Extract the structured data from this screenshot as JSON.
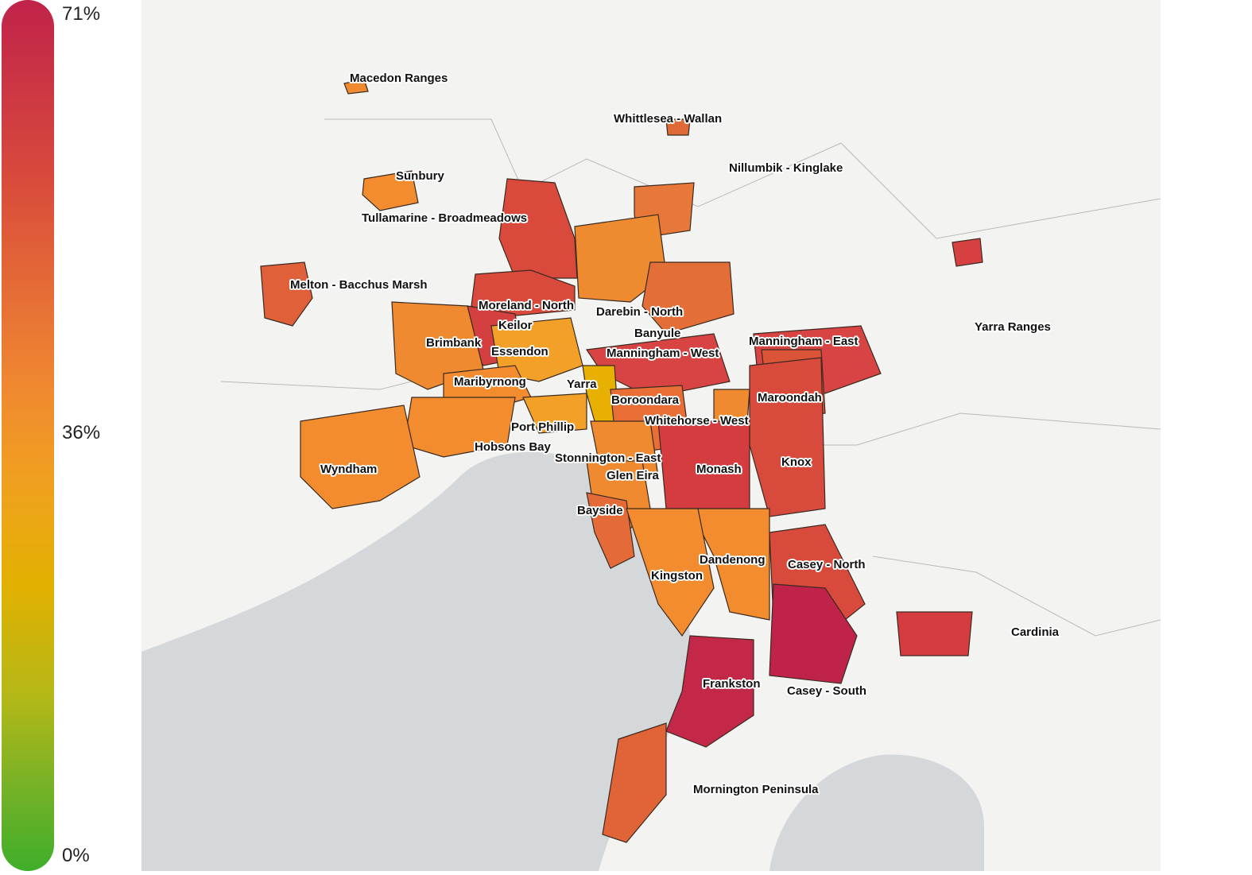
{
  "legend": {
    "max_label": "71%",
    "mid_label": "36%",
    "min_label": "0%",
    "colors": {
      "high": "#c0234a",
      "mid": "#f0a020",
      "low": "#3fae2a"
    }
  },
  "map": {
    "water_color": "#d5d8db",
    "land_color": "#f3f4f2",
    "regions": [
      {
        "name": "Macedon Ranges",
        "color": "#f08a30"
      },
      {
        "name": "Whittlesea - Wallan",
        "color": "#e06a35"
      },
      {
        "name": "Nillumbik - Kinglake",
        "color": "#e8783a"
      },
      {
        "name": "Sunbury",
        "color": "#f28c2e"
      },
      {
        "name": "Tullamarine - Broadmeadows",
        "color": "#d94a3c"
      },
      {
        "name": "Melton - Bacchus Marsh",
        "color": "#e0603a"
      },
      {
        "name": "Moreland - North",
        "color": "#d94a3c"
      },
      {
        "name": "Darebin - North",
        "color": "#ee8a30"
      },
      {
        "name": "Keilor",
        "color": "#d44040"
      },
      {
        "name": "Banyule",
        "color": "#e46e38"
      },
      {
        "name": "Brimbank",
        "color": "#f08a30"
      },
      {
        "name": "Essendon",
        "color": "#f2a028"
      },
      {
        "name": "Manningham - West",
        "color": "#d84444"
      },
      {
        "name": "Manningham - East",
        "color": "#d84444"
      },
      {
        "name": "Yarra Ranges",
        "color": "#d64040"
      },
      {
        "name": "Maribyrnong",
        "color": "#f28c2e"
      },
      {
        "name": "Yarra",
        "color": "#e8b000"
      },
      {
        "name": "Boroondara",
        "color": "#e86e36"
      },
      {
        "name": "Maroondah",
        "color": "#dc5438"
      },
      {
        "name": "Whitehorse - West",
        "color": "#f08a30"
      },
      {
        "name": "Port Phillip",
        "color": "#f2a028"
      },
      {
        "name": "Hobsons Bay",
        "color": "#f28c2e"
      },
      {
        "name": "Stonnington - East",
        "color": "#f08a30"
      },
      {
        "name": "Knox",
        "color": "#d84a3c"
      },
      {
        "name": "Wyndham",
        "color": "#f28c2e"
      },
      {
        "name": "Glen Eira",
        "color": "#f08a30"
      },
      {
        "name": "Monash",
        "color": "#d43c40"
      },
      {
        "name": "Bayside",
        "color": "#e46a38"
      },
      {
        "name": "Dandenong",
        "color": "#f28c2e"
      },
      {
        "name": "Casey - North",
        "color": "#d84a3c"
      },
      {
        "name": "Kingston",
        "color": "#f28c2e"
      },
      {
        "name": "Cardinia",
        "color": "#d43c40"
      },
      {
        "name": "Frankston",
        "color": "#c42848"
      },
      {
        "name": "Casey - South",
        "color": "#c0234a"
      },
      {
        "name": "Mornington Peninsula",
        "color": "#e06438"
      }
    ]
  }
}
